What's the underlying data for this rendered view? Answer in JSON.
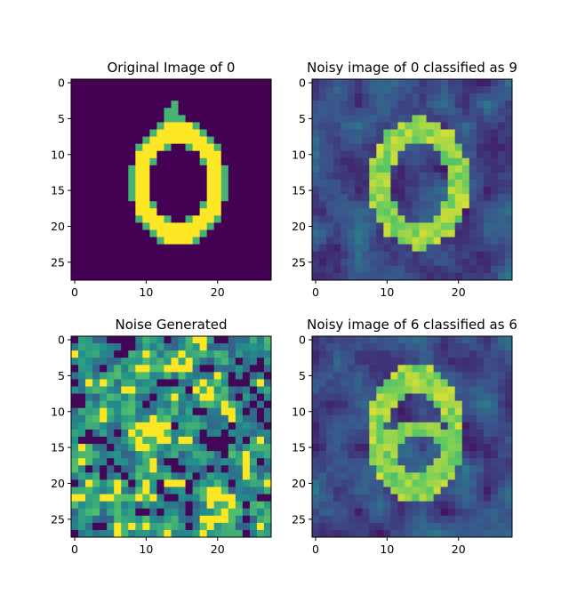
{
  "chart_data": [
    {
      "type": "heatmap",
      "title": "Original Image of 0",
      "xlabel": "",
      "ylabel": "",
      "xlim": [
        -0.5,
        27.5
      ],
      "ylim": [
        27.5,
        -0.5
      ],
      "x_ticks": [
        0,
        10,
        20
      ],
      "y_ticks": [
        0,
        5,
        10,
        15,
        20,
        25
      ],
      "colormap": "viridis",
      "shape": [
        28,
        28
      ],
      "content": "handwritten digit 0"
    },
    {
      "type": "heatmap",
      "title": "Noisy image of 0 classified as 9",
      "xlabel": "",
      "ylabel": "",
      "xlim": [
        -0.5,
        27.5
      ],
      "ylim": [
        27.5,
        -0.5
      ],
      "x_ticks": [
        0,
        10,
        20
      ],
      "y_ticks": [
        0,
        5,
        10,
        15,
        20,
        25
      ],
      "colormap": "viridis",
      "shape": [
        28,
        28
      ],
      "content": "digit 0 with adversarial noise"
    },
    {
      "type": "heatmap",
      "title": "Noise Generated",
      "xlabel": "",
      "ylabel": "",
      "xlim": [
        -0.5,
        27.5
      ],
      "ylim": [
        27.5,
        -0.5
      ],
      "x_ticks": [
        0,
        10,
        20
      ],
      "y_ticks": [
        0,
        5,
        10,
        15,
        20,
        25
      ],
      "colormap": "viridis",
      "shape": [
        28,
        28
      ],
      "content": "noise pattern"
    },
    {
      "type": "heatmap",
      "title": "Noisy image of 6 classified as 6",
      "xlabel": "",
      "ylabel": "",
      "xlim": [
        -0.5,
        27.5
      ],
      "ylim": [
        27.5,
        -0.5
      ],
      "x_ticks": [
        0,
        10,
        20
      ],
      "y_ticks": [
        0,
        5,
        10,
        15,
        20,
        25
      ],
      "colormap": "viridis",
      "shape": [
        28,
        28
      ],
      "content": "digit 6 with noise"
    }
  ],
  "colors": {
    "viridis_stops": [
      "#440154",
      "#3b528b",
      "#21918c",
      "#5ec962",
      "#fde725"
    ]
  }
}
